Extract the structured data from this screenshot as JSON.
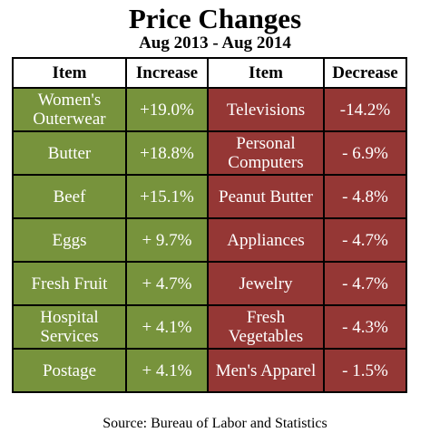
{
  "chart_data": {
    "type": "table",
    "title": "Price Changes",
    "subtitle": "Aug 2013 - Aug 2014",
    "source": "Source: Bureau of Labor and Statistics",
    "columns": [
      "Item",
      "Increase",
      "Item",
      "Decrease"
    ],
    "increase": [
      {
        "item": "Women's Outerwear",
        "display": "+19.0%",
        "value": 19.0
      },
      {
        "item": "Butter",
        "display": "+18.8%",
        "value": 18.8
      },
      {
        "item": "Beef",
        "display": "+15.1%",
        "value": 15.1
      },
      {
        "item": "Eggs",
        "display": "+ 9.7%",
        "value": 9.7
      },
      {
        "item": "Fresh Fruit",
        "display": "+ 4.7%",
        "value": 4.7
      },
      {
        "item": "Hospital Services",
        "display": "+ 4.1%",
        "value": 4.1
      },
      {
        "item": "Postage",
        "display": "+ 4.1%",
        "value": 4.1
      }
    ],
    "decrease": [
      {
        "item": "Televisions",
        "display": "-14.2%",
        "value": -14.2
      },
      {
        "item": "Personal Computers",
        "display": "- 6.9%",
        "value": -6.9
      },
      {
        "item": "Peanut Butter",
        "display": "- 4.8%",
        "value": -4.8
      },
      {
        "item": "Appliances",
        "display": "- 4.7%",
        "value": -4.7
      },
      {
        "item": "Jewelry",
        "display": "- 4.7%",
        "value": -4.7
      },
      {
        "item": "Fresh Vegetables",
        "display": "- 4.3%",
        "value": -4.3
      },
      {
        "item": "Men's Apparel",
        "display": "- 1.5%",
        "value": -1.5
      }
    ],
    "colors": {
      "increase": "#77933c",
      "decrease": "#953735"
    }
  }
}
